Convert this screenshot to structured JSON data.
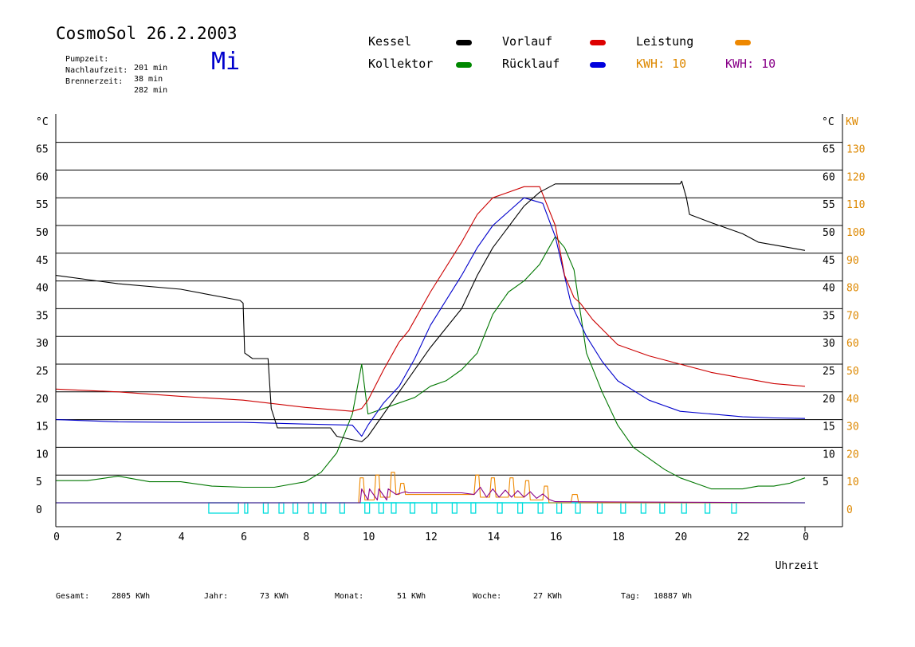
{
  "header": {
    "title": "CosmoSol 26.2.2003",
    "day": "Mi",
    "info": [
      {
        "label": "Pumpzeit:",
        "value": "201 min"
      },
      {
        "label": "Nachlaufzeit:",
        "value": "38 min"
      },
      {
        "label": "Brennerzeit:",
        "value": "282 min"
      }
    ]
  },
  "legend": {
    "kessel": "Kessel",
    "vorlauf": "Vorlauf",
    "leistung": "Leistung",
    "kollektor": "Kollektor",
    "ruecklauf": "Rücklauf",
    "kwh1": "KWH: 10",
    "kwh2": "KWH: 10"
  },
  "footer": {
    "gesamt_label": "Gesamt:",
    "gesamt_value": "2805 KWh",
    "jahr_label": "Jahr:",
    "jahr_value": "73 KWh",
    "monat_label": "Monat:",
    "monat_value": "51 KWh",
    "woche_label": "Woche:",
    "woche_value": "27 KWh",
    "tag_label": "Tag:",
    "tag_value": "10887 Wh"
  },
  "colors": {
    "kessel": "#000000",
    "vorlauf": "#cc0000",
    "ruecklauf": "#0000cc",
    "kollektor": "#007700",
    "leistung": "#ee8800",
    "purple": "#880088",
    "pump": "#00dddd",
    "right_axis": "#dd8800"
  },
  "chart_data": {
    "type": "line",
    "xlabel": "Uhrzeit",
    "ylabel_left": "°C",
    "ylabel_right": "KW",
    "xlim": [
      0,
      24
    ],
    "ylim": [
      -2,
      67
    ],
    "x_ticks": [
      "0",
      "2",
      "4",
      "6",
      "8",
      "10",
      "12",
      "14",
      "16",
      "18",
      "20",
      "22",
      "0"
    ],
    "y_ticks_left": [
      "0",
      "5",
      "10",
      "15",
      "20",
      "25",
      "30",
      "35",
      "40",
      "45",
      "50",
      "55",
      "60",
      "65"
    ],
    "y_ticks_right_temp": [
      "5",
      "10",
      "15",
      "20",
      "25",
      "30",
      "35",
      "40",
      "45",
      "50",
      "55",
      "60",
      "65"
    ],
    "y_ticks_right_kw": [
      "0",
      "10",
      "20",
      "30",
      "40",
      "50",
      "60",
      "70",
      "80",
      "90",
      "100",
      "110",
      "120",
      "130"
    ],
    "series": [
      {
        "name": "Kessel",
        "key": "kessel",
        "x": [
          0,
          2,
          4,
          5.9,
          6.0,
          6.05,
          6.3,
          6.8,
          6.9,
          7.1,
          8.8,
          9.0,
          9.8,
          10.0,
          11.0,
          12.0,
          13.0,
          13.5,
          14.0,
          15.0,
          15.5,
          16.0,
          19.0,
          20.0,
          20.05,
          20.2,
          20.3,
          21.0,
          22.0,
          22.5,
          23.5,
          24.0
        ],
        "y": [
          41,
          39.5,
          38.5,
          36.5,
          36,
          27,
          26,
          26,
          17,
          13.5,
          13.5,
          12,
          11,
          12,
          20,
          28,
          35,
          41,
          46,
          53.5,
          56,
          57.5,
          57.5,
          57.5,
          58,
          55,
          52,
          50.5,
          48.5,
          47,
          46,
          45.5
        ]
      },
      {
        "name": "Vorlauf",
        "key": "vorlauf",
        "x": [
          0,
          2,
          4,
          6,
          8,
          9.5,
          9.8,
          10.0,
          10.5,
          11.0,
          11.3,
          12.0,
          13.0,
          13.5,
          14.0,
          15.0,
          15.5,
          16.0,
          16.3,
          16.6,
          16.8,
          17.2,
          18.0,
          19.0,
          20.0,
          21.0,
          22.0,
          23.0,
          24.0
        ],
        "y": [
          20.5,
          20,
          19.2,
          18.5,
          17.2,
          16.5,
          17,
          18.5,
          24,
          29,
          31,
          38,
          47,
          52,
          55,
          57,
          57,
          50,
          41,
          37,
          36,
          33,
          28.5,
          26.5,
          25,
          23.5,
          22.5,
          21.5,
          21
        ]
      },
      {
        "name": "Rücklauf",
        "key": "ruecklauf",
        "x": [
          0,
          2,
          4,
          6,
          8,
          9.5,
          9.8,
          10.0,
          10.5,
          11.0,
          11.5,
          12.0,
          13.0,
          13.5,
          14.0,
          15.0,
          15.6,
          16.0,
          16.5,
          17.0,
          17.5,
          18.0,
          19.0,
          20.0,
          21.0,
          22.0,
          23.0,
          24.0
        ],
        "y": [
          15,
          14.6,
          14.5,
          14.5,
          14.2,
          14,
          12,
          14,
          18,
          21,
          26,
          32,
          41,
          46,
          50,
          55,
          54,
          48,
          36,
          30,
          25.5,
          22,
          18.5,
          16.5,
          16,
          15.5,
          15.3,
          15.2
        ]
      },
      {
        "name": "Kollektor",
        "key": "kollektor",
        "x": [
          0,
          1,
          2,
          3,
          4,
          5,
          6,
          7,
          8,
          8.5,
          9.0,
          9.5,
          9.8,
          10.0,
          10.5,
          11.0,
          11.5,
          12.0,
          12.5,
          13.0,
          13.5,
          14.0,
          14.5,
          15.0,
          15.5,
          16.0,
          16.3,
          16.6,
          17.0,
          17.5,
          18.0,
          18.5,
          19.0,
          19.5,
          20.0,
          20.5,
          21.0,
          21.5,
          22.0,
          22.5,
          23.0,
          23.5,
          24.0
        ],
        "y": [
          4,
          4,
          4.8,
          3.8,
          3.8,
          3,
          2.8,
          2.8,
          3.8,
          5.5,
          9,
          16,
          25,
          16,
          17,
          18,
          19,
          21,
          22,
          24,
          27,
          34,
          38,
          40,
          43,
          48,
          46,
          42,
          27,
          20,
          14,
          10,
          8,
          6,
          4.5,
          3.5,
          2.5,
          2.5,
          2.5,
          3,
          3,
          3.5,
          4.5
        ]
      },
      {
        "name": "Leistung",
        "key": "leistung",
        "x": [
          0,
          9.7,
          9.75,
          9.85,
          9.9,
          10.2,
          10.25,
          10.35,
          10.4,
          10.7,
          10.75,
          10.85,
          10.9,
          11.0,
          11.05,
          11.15,
          11.2,
          13.4,
          13.45,
          13.55,
          13.6,
          13.9,
          13.95,
          14.05,
          14.1,
          14.5,
          14.55,
          14.65,
          14.7,
          15.0,
          15.05,
          15.15,
          15.2,
          15.6,
          15.65,
          15.75,
          15.8,
          16.5,
          16.55,
          16.7,
          16.75,
          24
        ],
        "y": [
          0,
          0,
          4.5,
          4.5,
          0.5,
          0.5,
          5,
          5,
          1,
          1,
          5.5,
          5.5,
          1.5,
          1.5,
          3.5,
          3.5,
          1.5,
          1.5,
          5,
          5,
          1,
          1,
          4.5,
          4.5,
          1,
          1,
          4.5,
          4.5,
          1,
          1,
          4,
          4,
          0.5,
          0.5,
          3,
          3,
          0,
          0,
          1.5,
          1.5,
          0,
          0
        ]
      },
      {
        "name": "KWH",
        "key": "purple",
        "x": [
          0,
          9.75,
          9.8,
          10.0,
          10.05,
          10.3,
          10.35,
          10.6,
          10.65,
          10.9,
          11.2,
          11.3,
          13.0,
          13.4,
          13.6,
          13.8,
          14.0,
          14.2,
          14.4,
          14.6,
          14.8,
          15.0,
          15.2,
          15.4,
          15.6,
          15.8,
          16.0,
          24
        ],
        "y": [
          0,
          0,
          2.5,
          0.5,
          2.5,
          0.5,
          2.5,
          0.5,
          2.5,
          1.5,
          2.0,
          1.8,
          1.8,
          1.5,
          2.8,
          1.0,
          2.5,
          1.0,
          2.3,
          1.0,
          2.2,
          1.0,
          2.0,
          0.8,
          1.6,
          0.6,
          0.2,
          0
        ]
      }
    ],
    "pump_bars": [
      [
        4.9,
        5.85
      ],
      [
        6.05,
        6.15
      ],
      [
        6.65,
        6.8
      ],
      [
        7.15,
        7.3
      ],
      [
        7.6,
        7.75
      ],
      [
        8.1,
        8.25
      ],
      [
        8.5,
        8.65
      ],
      [
        9.1,
        9.25
      ],
      [
        9.9,
        10.05
      ],
      [
        10.35,
        10.5
      ],
      [
        10.75,
        10.9
      ],
      [
        11.35,
        11.5
      ],
      [
        12.05,
        12.2
      ],
      [
        12.7,
        12.85
      ],
      [
        13.3,
        13.45
      ],
      [
        14.15,
        14.3
      ],
      [
        14.8,
        14.95
      ],
      [
        15.45,
        15.6
      ],
      [
        16.05,
        16.2
      ],
      [
        16.65,
        16.8
      ],
      [
        17.35,
        17.5
      ],
      [
        18.1,
        18.25
      ],
      [
        18.75,
        18.9
      ],
      [
        19.35,
        19.5
      ],
      [
        20.05,
        20.2
      ],
      [
        20.8,
        20.95
      ],
      [
        21.65,
        21.8
      ]
    ]
  }
}
